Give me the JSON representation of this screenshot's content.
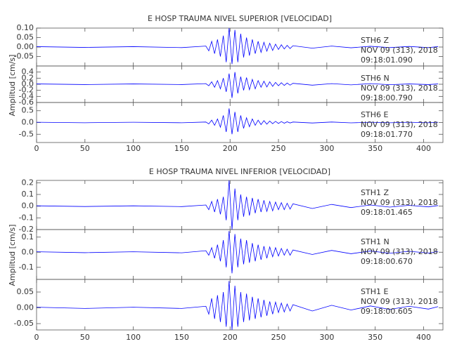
{
  "chart_data": [
    {
      "type": "line",
      "title": "E HOSP TRAUMA NIVEL SUPERIOR [VELOCIDAD]",
      "ylabel": "Amplitud [cm/s]",
      "xlim": [
        0,
        420
      ],
      "xticks": [
        0,
        50,
        100,
        150,
        200,
        250,
        300,
        350,
        400
      ],
      "x": [
        0,
        50,
        100,
        150,
        175,
        178,
        181,
        184,
        187,
        190,
        193,
        196,
        199,
        202,
        205,
        208,
        211,
        214,
        217,
        220,
        223,
        226,
        229,
        232,
        235,
        238,
        241,
        244,
        247,
        250,
        253,
        256,
        259,
        262,
        265,
        285,
        305,
        325,
        345,
        365,
        385,
        405,
        415
      ],
      "traces": [
        {
          "labels": [
            "STH6   Z",
            "NOV 09 (313), 2018",
            "09:18:01.090"
          ],
          "color": "#0000ff",
          "ylim": [
            -0.1,
            0.1
          ],
          "yticks": [
            {
              "value": 0.1,
              "label": "0.10"
            },
            0.05,
            {
              "value": 0,
              "label": "0.00"
            },
            -0.05
          ],
          "values": [
            0.002,
            -0.002,
            0.002,
            -0.003,
            0.005,
            -0.02,
            0.03,
            -0.035,
            0.04,
            -0.05,
            0.06,
            -0.08,
            0.1,
            -0.09,
            0.09,
            -0.08,
            0.07,
            -0.055,
            0.05,
            -0.045,
            0.04,
            -0.035,
            0.03,
            -0.028,
            0.025,
            -0.022,
            0.02,
            -0.018,
            0.015,
            -0.013,
            0.012,
            -0.01,
            0.009,
            -0.008,
            0.007,
            -0.006,
            0.005,
            -0.004,
            0.004,
            -0.003,
            0.003,
            -0.003,
            0.002
          ]
        },
        {
          "labels": [
            "STH6   N",
            "NOV 09 (313), 2018",
            "09:18:00.790"
          ],
          "color": "#0000ff",
          "ylim": [
            -0.6,
            0.6
          ],
          "yticks": [
            0.4,
            0.2,
            {
              "value": 0,
              "label": "0.0"
            },
            -0.2,
            -0.4,
            -0.6
          ],
          "values": [
            0.01,
            -0.01,
            0.01,
            -0.01,
            0.02,
            -0.05,
            0.08,
            -0.1,
            0.12,
            -0.15,
            0.2,
            -0.25,
            0.35,
            -0.45,
            0.4,
            -0.3,
            0.25,
            -0.2,
            0.22,
            -0.18,
            0.16,
            -0.15,
            0.12,
            -0.1,
            0.1,
            -0.09,
            0.08,
            -0.07,
            0.06,
            -0.05,
            0.05,
            -0.04,
            0.04,
            -0.03,
            0.03,
            -0.03,
            0.02,
            -0.02,
            0.02,
            -0.015,
            0.01,
            -0.01,
            0.01
          ]
        },
        {
          "labels": [
            "STH6   E",
            "NOV 09 (313), 2018",
            "09:18:01.770"
          ],
          "color": "#0000ff",
          "ylim": [
            -0.85,
            0.85
          ],
          "yticks": [
            0.5,
            {
              "value": 0,
              "label": "0.0"
            },
            -0.5
          ],
          "values": [
            0.01,
            -0.01,
            0.01,
            -0.01,
            0.02,
            -0.06,
            0.1,
            -0.12,
            0.15,
            -0.2,
            0.3,
            -0.4,
            0.6,
            -0.5,
            0.45,
            -0.4,
            0.3,
            -0.25,
            0.2,
            -0.18,
            0.15,
            -0.12,
            0.1,
            -0.09,
            0.08,
            -0.07,
            0.06,
            -0.05,
            0.05,
            -0.04,
            0.04,
            -0.03,
            0.03,
            -0.02,
            0.02,
            -0.02,
            0.02,
            -0.015,
            0.01,
            -0.01,
            0.01,
            -0.01,
            0.01
          ]
        }
      ]
    },
    {
      "type": "line",
      "title": "E HOSP TRAUMA NIVEL INFERIOR [VELOCIDAD]",
      "ylabel": "Amplitud [cm/s]",
      "xlim": [
        0,
        420
      ],
      "xticks": [
        0,
        50,
        100,
        150,
        200,
        250,
        300,
        350,
        400
      ],
      "x": [
        0,
        50,
        100,
        150,
        175,
        178,
        181,
        184,
        187,
        190,
        193,
        196,
        199,
        202,
        205,
        208,
        211,
        214,
        217,
        220,
        223,
        226,
        229,
        232,
        235,
        238,
        241,
        244,
        247,
        250,
        253,
        256,
        259,
        262,
        265,
        285,
        305,
        325,
        345,
        365,
        385,
        405,
        415
      ],
      "traces": [
        {
          "labels": [
            "STH1   Z",
            "NOV 09 (313), 2018",
            "09:18:01.465"
          ],
          "color": "#0000ff",
          "ylim": [
            -0.2,
            0.22
          ],
          "yticks": [
            0.2,
            0.1,
            {
              "value": 0,
              "label": "0.0"
            },
            -0.1,
            -0.2
          ],
          "values": [
            0.003,
            -0.003,
            0.003,
            -0.004,
            0.01,
            -0.03,
            0.04,
            -0.05,
            0.06,
            -0.07,
            0.08,
            -0.12,
            0.22,
            -0.2,
            0.15,
            -0.12,
            0.1,
            -0.09,
            0.08,
            -0.08,
            0.07,
            -0.06,
            0.06,
            -0.05,
            0.05,
            -0.045,
            0.04,
            -0.04,
            0.035,
            -0.03,
            0.03,
            -0.03,
            0.025,
            -0.025,
            0.02,
            -0.02,
            0.015,
            -0.012,
            0.01,
            -0.008,
            0.007,
            -0.006,
            0.005
          ]
        },
        {
          "labels": [
            "STH1   N",
            "NOV 09 (313), 2018",
            "09:18:00.670"
          ],
          "color": "#0000ff",
          "ylim": [
            -0.18,
            0.15
          ],
          "yticks": [
            0.1,
            {
              "value": 0,
              "label": "0.0"
            },
            -0.1
          ],
          "values": [
            0.003,
            -0.003,
            0.003,
            -0.004,
            0.01,
            -0.02,
            0.03,
            -0.04,
            0.05,
            -0.06,
            0.08,
            -0.1,
            0.14,
            -0.14,
            0.12,
            -0.1,
            0.09,
            -0.08,
            0.08,
            -0.07,
            0.06,
            -0.06,
            0.05,
            -0.05,
            0.04,
            -0.04,
            0.035,
            -0.03,
            0.03,
            -0.025,
            0.025,
            -0.02,
            0.02,
            -0.02,
            0.015,
            -0.015,
            0.012,
            -0.01,
            0.008,
            -0.007,
            0.006,
            -0.005,
            0.004
          ]
        },
        {
          "labels": [
            "STH1   E",
            "NOV 09 (313), 2018",
            "09:18:00.605"
          ],
          "color": "#0000ff",
          "ylim": [
            -0.07,
            0.09
          ],
          "yticks": [
            0.05,
            {
              "value": 0,
              "label": "0.00"
            },
            -0.05
          ],
          "values": [
            0.002,
            -0.002,
            0.002,
            -0.002,
            0.005,
            -0.02,
            0.03,
            -0.035,
            0.04,
            -0.045,
            0.05,
            -0.06,
            0.085,
            -0.07,
            0.07,
            -0.06,
            0.05,
            -0.045,
            0.045,
            -0.04,
            0.035,
            -0.035,
            0.03,
            -0.03,
            0.025,
            -0.025,
            0.02,
            -0.02,
            0.018,
            -0.015,
            0.015,
            -0.013,
            0.012,
            -0.01,
            0.01,
            -0.01,
            0.008,
            -0.007,
            0.006,
            -0.005,
            0.005,
            -0.004,
            0.004
          ]
        }
      ]
    }
  ]
}
